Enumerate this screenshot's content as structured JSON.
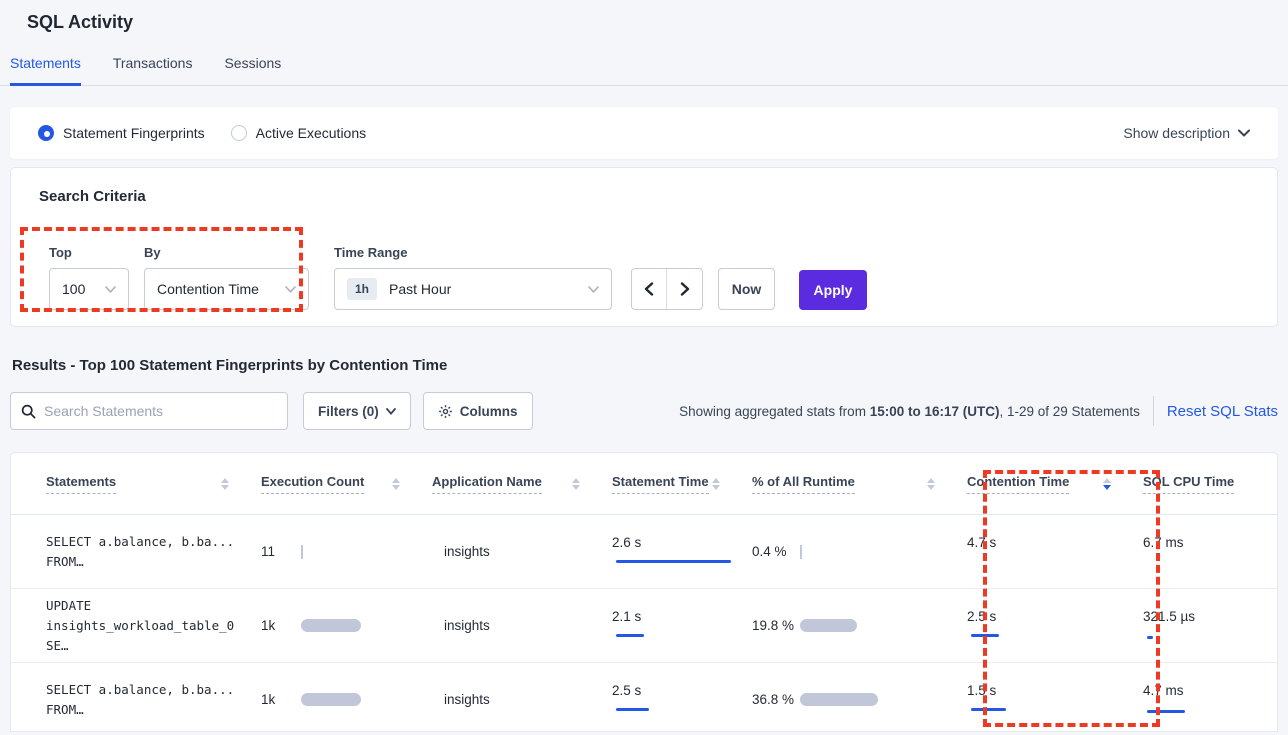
{
  "page": {
    "title": "SQL Activity"
  },
  "tabs": [
    {
      "label": "Statements",
      "active": true
    },
    {
      "label": "Transactions",
      "active": false
    },
    {
      "label": "Sessions",
      "active": false
    }
  ],
  "view_toggle": {
    "options": [
      {
        "label": "Statement Fingerprints",
        "selected": true
      },
      {
        "label": "Active Executions",
        "selected": false
      }
    ],
    "show_description": "Show description"
  },
  "search_criteria": {
    "title": "Search Criteria",
    "top": {
      "label": "Top",
      "value": "100"
    },
    "by": {
      "label": "By",
      "value": "Contention Time"
    },
    "time_range": {
      "label": "Time Range",
      "badge": "1h",
      "value": "Past Hour"
    },
    "now_label": "Now",
    "apply_label": "Apply"
  },
  "results": {
    "heading": "Results - Top 100 Statement Fingerprints by Contention Time",
    "search_placeholder": "Search Statements",
    "filters_label": "Filters (0)",
    "columns_label": "Columns",
    "stats_prefix": "Showing aggregated stats from ",
    "stats_bold": "15:00 to 16:17 (UTC)",
    "stats_suffix": ", 1-29 of 29 Statements",
    "reset_label": "Reset SQL Stats"
  },
  "table": {
    "columns": [
      {
        "label": "Statements",
        "sortable": true,
        "sort": null
      },
      {
        "label": "Execution Count",
        "sortable": true,
        "sort": null
      },
      {
        "label": "Application Name",
        "sortable": true,
        "sort": null
      },
      {
        "label": "Statement Time",
        "sortable": true,
        "sort": null
      },
      {
        "label": "% of All Runtime",
        "sortable": true,
        "sort": null
      },
      {
        "label": "Contention Time",
        "sortable": true,
        "sort": "desc"
      },
      {
        "label": "SQL CPU Time",
        "sortable": false,
        "sort": null
      }
    ],
    "rows": [
      {
        "statement_line1": "SELECT a.balance, b.ba...",
        "statement_line2": "FROM…",
        "exec_count": "11",
        "app": "insights",
        "stmt_time": "2.6 s",
        "pct_runtime": "0.4 %",
        "contention": "4.7 s",
        "cpu": "6.7 ms",
        "bars": {
          "exec": 2,
          "stmt_gray": 55,
          "stmt_blue": 115,
          "pct": 2,
          "cont_gray": 40,
          "cont_blue": 0,
          "cpu_gray": 35,
          "cpu_blue": 0
        }
      },
      {
        "statement_line1": "UPDATE",
        "statement_line2": "insights_workload_table_0 SE…",
        "exec_count": "1k",
        "app": "insights",
        "stmt_time": "2.1 s",
        "pct_runtime": "19.8 %",
        "contention": "2.5 s",
        "cpu": "321.5 µs",
        "bars": {
          "exec": 60,
          "stmt_gray": 25,
          "stmt_blue": 28,
          "pct": 57,
          "cont_gray": 20,
          "cont_blue": 28,
          "cpu_gray": 3,
          "cpu_blue": 6
        }
      },
      {
        "statement_line1": "SELECT a.balance, b.ba...",
        "statement_line2": "FROM…",
        "exec_count": "1k",
        "app": "insights",
        "stmt_time": "2.5 s",
        "pct_runtime": "36.8 %",
        "contention": "1.5 s",
        "cpu": "4.7 ms",
        "bars": {
          "exec": 60,
          "stmt_gray": 23,
          "stmt_blue": 33,
          "pct": 78,
          "cont_gray": 15,
          "cont_blue": 35,
          "cpu_gray": 23,
          "cpu_blue": 38
        }
      }
    ]
  },
  "colors": {
    "accent_blue": "#2458e4",
    "apply_purple": "#5b2be0",
    "annotation_red": "#ee3a23",
    "bar_gray": "#c1c7d9",
    "page_bg": "#f4f6fa"
  }
}
